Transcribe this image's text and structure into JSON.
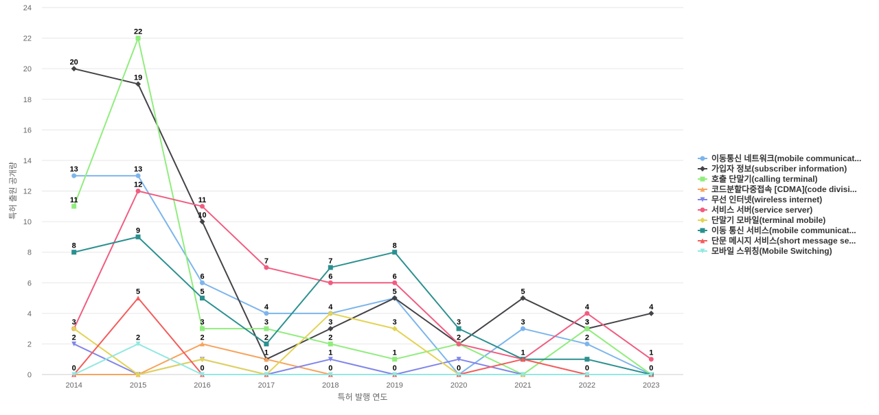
{
  "chart_data": {
    "type": "line",
    "title": "",
    "xlabel": "특허 발행 연도",
    "ylabel": "특허 출원 공개량",
    "ylim": [
      0,
      24
    ],
    "yticks": [
      0,
      2,
      4,
      6,
      8,
      10,
      12,
      14,
      16,
      18,
      20,
      22,
      24
    ],
    "grid": true,
    "legend_position": "right",
    "categories": [
      "2014",
      "2015",
      "2016",
      "2017",
      "2018",
      "2019",
      "2020",
      "2021",
      "2022",
      "2023"
    ],
    "series": [
      {
        "name": "이동통신 네트워크(mobile communicat...",
        "color": "#7cb5ec",
        "marker": "circle",
        "values": [
          13,
          13,
          6,
          4,
          4,
          5,
          0,
          3,
          2,
          0
        ],
        "labels": [
          true,
          true,
          true,
          true,
          false,
          false,
          false,
          true,
          true,
          false
        ]
      },
      {
        "name": "가입자 정보(subscriber information)",
        "color": "#434348",
        "marker": "diamond",
        "values": [
          20,
          19,
          10,
          1,
          3,
          5,
          2,
          5,
          3,
          4
        ],
        "labels": [
          true,
          true,
          true,
          true,
          true,
          true,
          true,
          true,
          true,
          true
        ]
      },
      {
        "name": "호출 단말기(calling terminal)",
        "color": "#90ed7d",
        "marker": "square",
        "values": [
          11,
          22,
          3,
          3,
          2,
          1,
          2,
          0,
          3,
          0
        ],
        "labels": [
          true,
          true,
          true,
          true,
          true,
          true,
          false,
          false,
          true,
          false
        ]
      },
      {
        "name": "코드분할다중접속 [CDMA](code divisi...",
        "color": "#f7a35c",
        "marker": "triangle",
        "values": [
          0,
          0,
          2,
          1,
          0,
          0,
          0,
          0,
          0,
          0
        ],
        "labels": [
          false,
          false,
          true,
          false,
          false,
          false,
          false,
          false,
          false,
          false
        ]
      },
      {
        "name": "무선 인터넷(wireless internet)",
        "color": "#8085e9",
        "marker": "triangle-down",
        "values": [
          2,
          0,
          1,
          0,
          1,
          0,
          1,
          0,
          0,
          0
        ],
        "labels": [
          true,
          false,
          false,
          false,
          true,
          false,
          false,
          false,
          false,
          false
        ]
      },
      {
        "name": "서비스 서버(service server)",
        "color": "#f15c80",
        "marker": "circle",
        "values": [
          3,
          12,
          11,
          7,
          6,
          6,
          2,
          1,
          4,
          1
        ],
        "labels": [
          false,
          true,
          true,
          true,
          true,
          true,
          false,
          false,
          true,
          true
        ]
      },
      {
        "name": "단말기 모바일(terminal mobile)",
        "color": "#e4d354",
        "marker": "diamond",
        "values": [
          3,
          0,
          1,
          0,
          4,
          3,
          0,
          0,
          0,
          0
        ],
        "labels": [
          true,
          false,
          false,
          false,
          true,
          true,
          false,
          false,
          false,
          false
        ]
      },
      {
        "name": "이동 통신 서비스(mobile communicat...",
        "color": "#2b908f",
        "marker": "square",
        "values": [
          8,
          9,
          5,
          2,
          7,
          8,
          3,
          1,
          1,
          0
        ],
        "labels": [
          true,
          true,
          true,
          true,
          true,
          true,
          true,
          false,
          false,
          false
        ]
      },
      {
        "name": "단문 메시지 서비스(short message se...",
        "color": "#f45b5b",
        "marker": "triangle",
        "values": [
          0,
          5,
          0,
          0,
          0,
          0,
          0,
          1,
          0,
          0
        ],
        "labels": [
          true,
          true,
          true,
          true,
          true,
          true,
          true,
          true,
          true,
          true
        ]
      },
      {
        "name": "모바일 스위칭(Mobile Switching)",
        "color": "#91e8e1",
        "marker": "triangle-down",
        "values": [
          0,
          2,
          0,
          0,
          0,
          0,
          0,
          0,
          0,
          0
        ],
        "labels": [
          false,
          true,
          false,
          false,
          false,
          false,
          false,
          false,
          false,
          false
        ]
      }
    ]
  }
}
